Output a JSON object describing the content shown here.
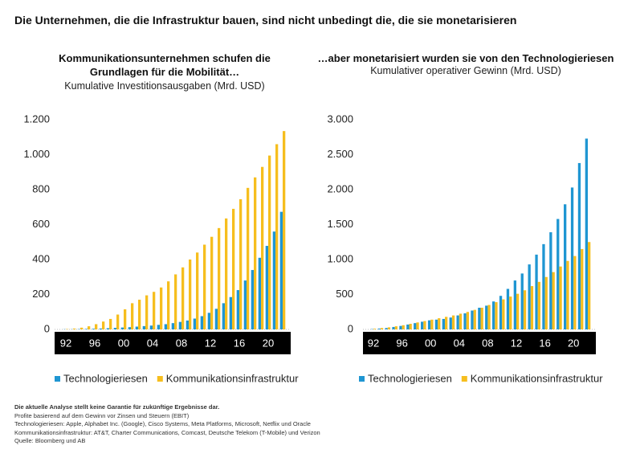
{
  "title": "Die Unternehmen, die die Infrastruktur bauen, sind nicht unbedingt die, die sie monetarisieren",
  "chart_data": [
    {
      "type": "bar",
      "title": "Kommunikationsunternehmen schufen die Grundlagen für die Mobilität…",
      "subtitle": "Kumulative Investitionsausgaben (Mrd. USD)",
      "categories": [
        "92",
        null,
        null,
        null,
        "96",
        null,
        null,
        null,
        "00",
        null,
        null,
        null,
        "04",
        null,
        null,
        null,
        "08",
        null,
        null,
        null,
        "12",
        null,
        null,
        null,
        "16",
        null,
        null,
        null,
        "20",
        null,
        null
      ],
      "series": [
        {
          "name": "Technologieriesen",
          "color": "#1f96d2",
          "values": [
            1,
            1,
            2,
            3,
            4,
            5,
            7,
            9,
            11,
            13,
            16,
            19,
            22,
            26,
            30,
            36,
            43,
            51,
            62,
            76,
            95,
            118,
            150,
            185,
            225,
            280,
            340,
            410,
            478,
            560,
            673
          ]
        },
        {
          "name": "Kommunikationsinfrastruktur",
          "color": "#f6be1e",
          "values": [
            2,
            5,
            10,
            18,
            30,
            45,
            60,
            85,
            115,
            150,
            170,
            195,
            215,
            240,
            275,
            315,
            355,
            400,
            440,
            485,
            530,
            580,
            635,
            690,
            745,
            810,
            870,
            930,
            995,
            1060,
            1135
          ]
        }
      ],
      "ylim": [
        0,
        1200
      ],
      "yticks": [
        0,
        200,
        400,
        600,
        800,
        {
          "value": 1000,
          "label": "1.000"
        },
        {
          "value": 1200,
          "label": "1.200"
        }
      ],
      "grid": false
    },
    {
      "type": "bar",
      "title": "…aber monetarisiert wurden sie von den Technologieriesen",
      "subtitle": "Kumulativer operativer Gewinn (Mrd. USD)",
      "categories": [
        "92",
        null,
        null,
        null,
        "96",
        null,
        null,
        null,
        "00",
        null,
        null,
        null,
        "04",
        null,
        null,
        null,
        "08",
        null,
        null,
        null,
        "12",
        null,
        null,
        null,
        "16",
        null,
        null,
        null,
        "20",
        null,
        null
      ],
      "series": [
        {
          "name": "Technologieriesen",
          "color": "#1f96d2",
          "values": [
            5,
            12,
            20,
            35,
            50,
            70,
            90,
            110,
            130,
            140,
            150,
            170,
            200,
            230,
            270,
            310,
            340,
            400,
            480,
            580,
            700,
            800,
            930,
            1070,
            1220,
            1390,
            1580,
            1790,
            2030,
            2380,
            2730
          ]
        },
        {
          "name": "Kommunikationsinfrastruktur",
          "color": "#f6be1e",
          "values": [
            10,
            20,
            30,
            45,
            60,
            80,
            100,
            120,
            140,
            160,
            180,
            200,
            225,
            250,
            280,
            310,
            350,
            390,
            430,
            470,
            510,
            560,
            620,
            680,
            750,
            820,
            900,
            980,
            1050,
            1150,
            1250
          ]
        }
      ],
      "ylim": [
        0,
        3000
      ],
      "yticks": [
        0,
        500,
        {
          "value": 1000,
          "label": "1.000"
        },
        {
          "value": 1500,
          "label": "1.500"
        },
        {
          "value": 2000,
          "label": "2.000"
        },
        {
          "value": 2500,
          "label": "2.500"
        },
        {
          "value": 3000,
          "label": "3.000"
        }
      ],
      "grid": false
    }
  ],
  "notes": [
    "Die aktuelle Analyse stellt keine Garantie für zukünftige Ergebnisse dar.",
    "Profite basierend auf dem Gewinn vor Zinsen und Steuern (EBIT)",
    "Technologieriesen: Apple, Alphabet Inc. (Google), Cisco Systems, Meta Platforms, Microsoft, Netflix und Oracle",
    "Kommunikationsinfrastruktur: AT&T, Charter Communications, Comcast, Deutsche Telekom (T-Mobile) und Verizon",
    "Quelle: Bloomberg und AB"
  ]
}
